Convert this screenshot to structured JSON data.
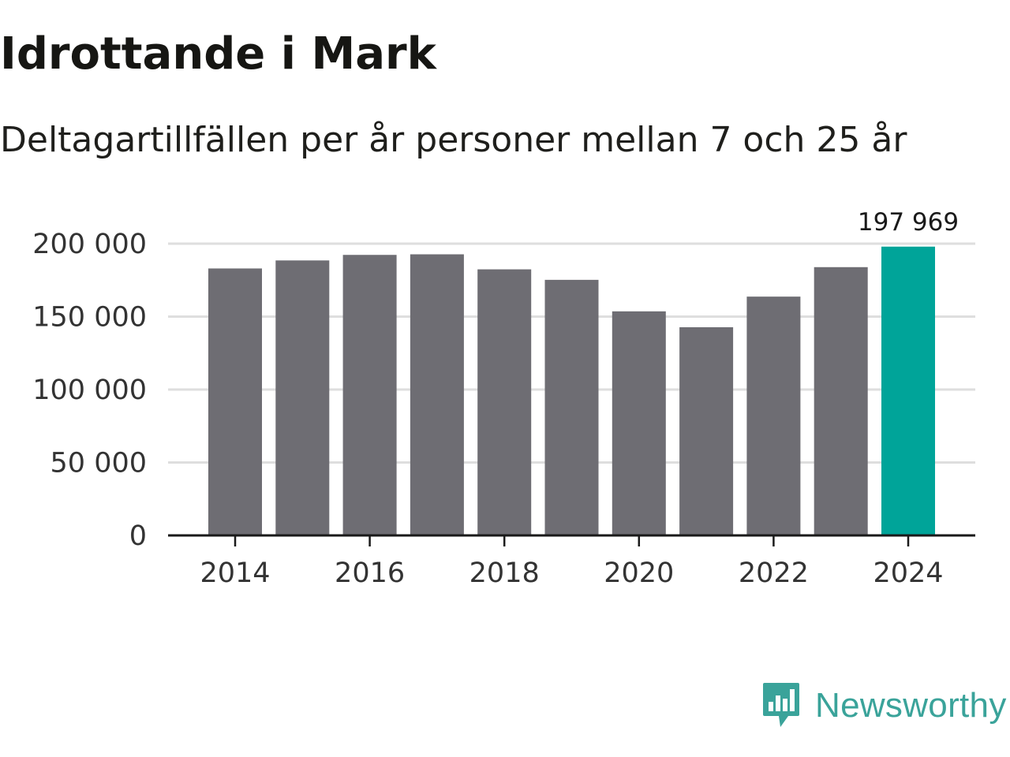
{
  "title": "Idrottande i Mark",
  "subtitle": "Deltagartillfällen per år personer mellan 7 och 25 år",
  "brand": {
    "name": "Newsworthy",
    "icon": "newsworthy-logo-icon",
    "color": "#3aa39a"
  },
  "colors": {
    "bar": "#6e6d73",
    "highlight": "#00a499",
    "grid": "#dedede",
    "axis": "#1a1a1a"
  },
  "chart_data": {
    "type": "bar",
    "title": "Idrottande i Mark",
    "subtitle": "Deltagartillfällen per år personer mellan 7 och 25 år",
    "xlabel": "",
    "ylabel": "",
    "categories": [
      "2014",
      "2015",
      "2016",
      "2017",
      "2018",
      "2019",
      "2020",
      "2021",
      "2022",
      "2023",
      "2024"
    ],
    "values": [
      183000,
      188500,
      192300,
      192700,
      182400,
      175200,
      153600,
      142700,
      163700,
      183900,
      197969
    ],
    "highlight_index": 10,
    "value_label": "197 969",
    "ylim": [
      0,
      200000
    ],
    "yticks": [
      0,
      50000,
      100000,
      150000,
      200000
    ],
    "ytick_labels": [
      "0",
      "50 000",
      "100 000",
      "150 000",
      "200 000"
    ],
    "xtick_labels": [
      "2014",
      "2016",
      "2018",
      "2020",
      "2022",
      "2024"
    ],
    "grid": true,
    "legend": "none"
  }
}
